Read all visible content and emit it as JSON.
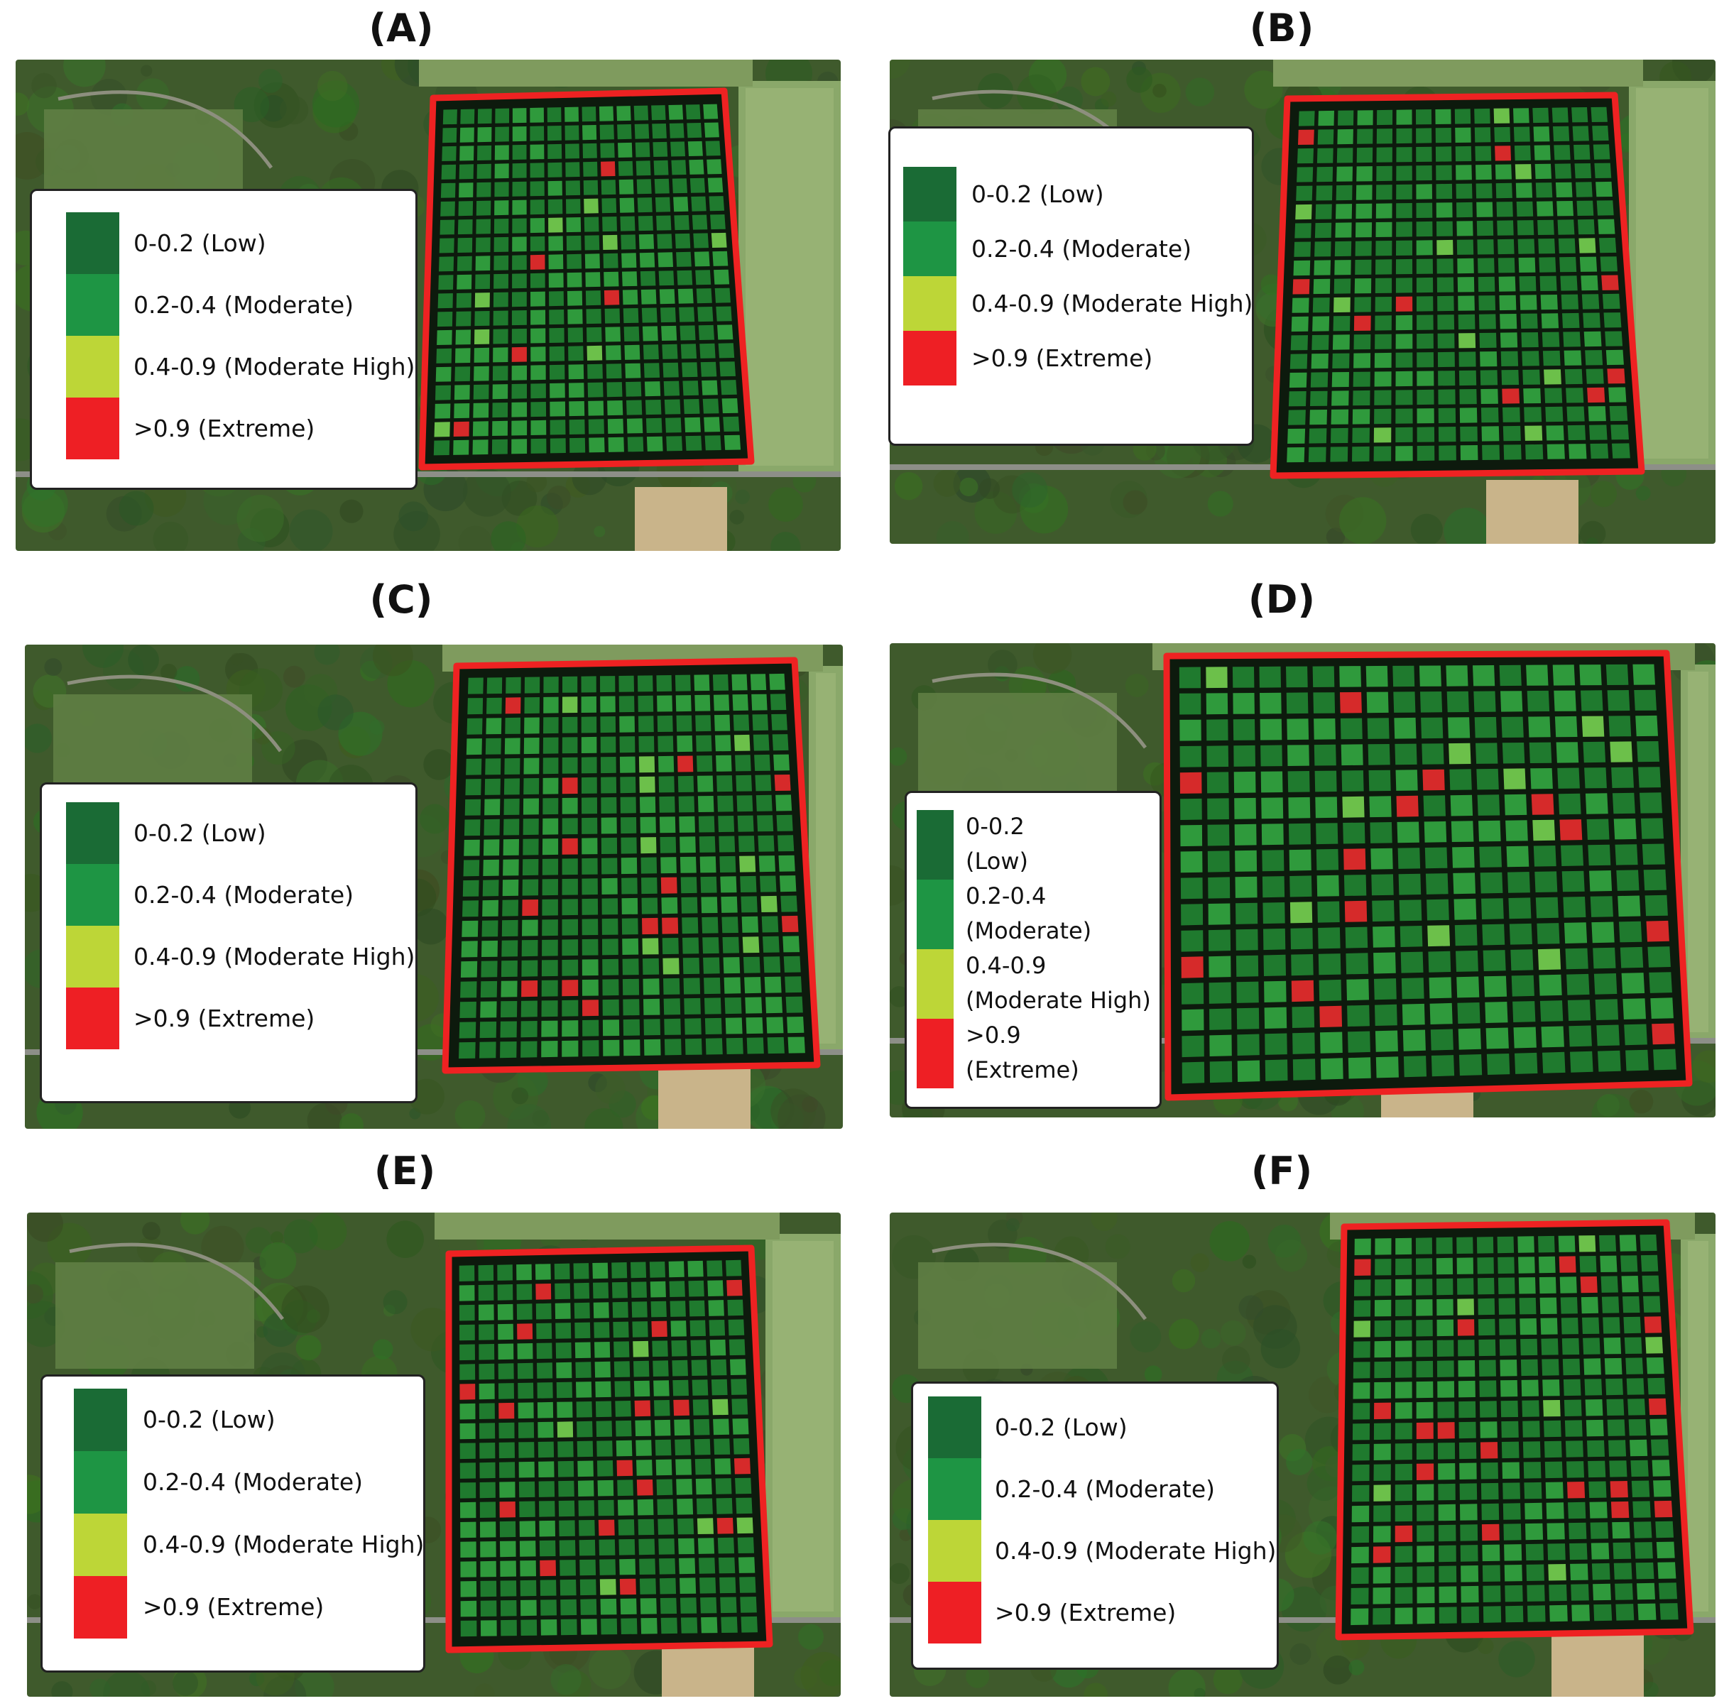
{
  "panels": [
    {
      "label": "(A)",
      "id": "a"
    },
    {
      "label": "(B)",
      "id": "b"
    },
    {
      "label": "(C)",
      "id": "c"
    },
    {
      "label": "(D)",
      "id": "d"
    },
    {
      "label": "(E)",
      "id": "e"
    },
    {
      "label": "(F)",
      "id": "f"
    }
  ],
  "legend": {
    "items": [
      {
        "label": "0-0.2 (Low)",
        "range": "0-0.2",
        "class": "(Low)",
        "color": "#1a6b35"
      },
      {
        "label": "0.2-0.4 (Moderate)",
        "range": "0.2-0.4",
        "class": "(Moderate)",
        "color": "#1e9544"
      },
      {
        "label": "0.4-0.9 (Moderate High)",
        "range": "0.4-0.9",
        "class": "(Moderate High)",
        "color": "#bdd637"
      },
      {
        "label": ">0.9 (Extreme)",
        "range": ">0.9",
        "class": "(Extreme)",
        "color": "#ee1f24"
      }
    ]
  },
  "colors": {
    "boundary": "#ee2222",
    "grid_line": "#0d1a0d",
    "cell_low": "#1f7a2e",
    "cell_moderate": "#2f9a3c",
    "cell_moderate_high": "#6cc04a",
    "cell_extreme": "#d62a2a"
  }
}
